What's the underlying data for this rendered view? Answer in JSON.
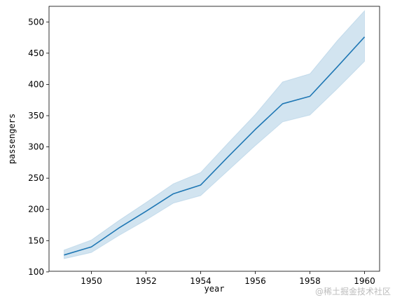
{
  "chart_data": {
    "type": "line",
    "xlabel": "year",
    "ylabel": "passengers",
    "xlim": [
      1948.45,
      1960.55
    ],
    "ylim": [
      101,
      525
    ],
    "x_ticks": [
      1950,
      1952,
      1954,
      1956,
      1958,
      1960
    ],
    "y_ticks": [
      100,
      150,
      200,
      250,
      300,
      350,
      400,
      450,
      500
    ],
    "grid": false,
    "series": [
      {
        "x": [
          1949,
          1950,
          1951,
          1952,
          1953,
          1954,
          1955,
          1956,
          1957,
          1958,
          1959,
          1960
        ],
        "values": [
          127,
          140,
          170,
          197,
          225,
          239,
          284,
          328,
          369,
          381,
          428,
          476
        ],
        "ci_low": [
          121,
          131,
          158,
          183,
          210,
          222,
          262,
          302,
          340,
          351,
          393,
          437
        ],
        "ci_high": [
          135,
          151,
          182,
          211,
          241,
          259,
          306,
          352,
          404,
          417,
          470,
          518
        ]
      }
    ],
    "colors": {
      "line": "#1f77b4",
      "band": "#1f77b4"
    }
  },
  "watermark": "@稀土掘金技术社区"
}
